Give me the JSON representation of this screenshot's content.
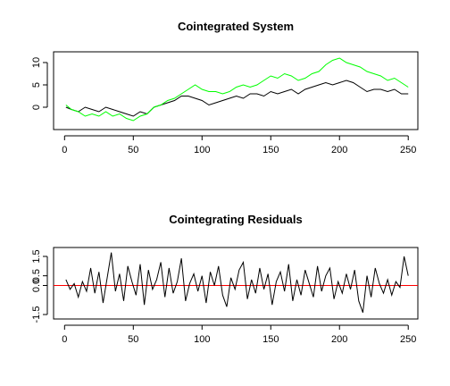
{
  "chart_data": [
    {
      "type": "line",
      "title": "Cointegrated System",
      "x": [
        1,
        5,
        10,
        15,
        20,
        25,
        30,
        35,
        40,
        45,
        50,
        55,
        60,
        65,
        70,
        75,
        80,
        85,
        90,
        95,
        100,
        105,
        110,
        115,
        120,
        125,
        130,
        135,
        140,
        145,
        150,
        155,
        160,
        165,
        170,
        175,
        180,
        185,
        190,
        195,
        200,
        205,
        210,
        215,
        220,
        225,
        230,
        235,
        240,
        245,
        250
      ],
      "series": [
        {
          "color": "#000000",
          "values": [
            0,
            -0.5,
            -1,
            0,
            -0.5,
            -1,
            0,
            -0.5,
            -1,
            -1.5,
            -2,
            -1,
            -1.5,
            0,
            0.5,
            1,
            1.5,
            2.5,
            2.5,
            2,
            1.5,
            0.5,
            1,
            1.5,
            2,
            2.5,
            2,
            3,
            3,
            2.5,
            3.5,
            3,
            3.5,
            4,
            3,
            4,
            4.5,
            5,
            5.5,
            5,
            5.5,
            6,
            5.5,
            4.5,
            3.5,
            4,
            4,
            3.5,
            4,
            3,
            3
          ]
        },
        {
          "color": "#00ff00",
          "values": [
            0.5,
            -0.5,
            -1,
            -2,
            -1.5,
            -2,
            -1,
            -2,
            -1.5,
            -2.5,
            -3,
            -2,
            -1.5,
            0,
            0.5,
            1.5,
            2,
            3,
            4,
            5,
            4,
            3.5,
            3.5,
            3,
            3.5,
            4.5,
            5,
            4.5,
            5,
            6,
            7,
            6.5,
            7.5,
            7,
            6,
            6.5,
            7.5,
            8,
            9.5,
            10.5,
            11,
            10,
            9.5,
            9,
            8,
            7.5,
            7,
            6,
            6.5,
            5.5,
            4.5
          ]
        }
      ],
      "xlim": [
        -8,
        257
      ],
      "ylim": [
        -5,
        12.4
      ],
      "xticks": [
        0,
        50,
        100,
        150,
        200,
        250
      ],
      "yticks": [
        0,
        5,
        10
      ]
    },
    {
      "type": "line",
      "title": "Cointegrating Residuals",
      "x": [
        1,
        4,
        7,
        10,
        13,
        16,
        19,
        22,
        25,
        28,
        31,
        34,
        37,
        40,
        43,
        46,
        49,
        52,
        55,
        58,
        61,
        64,
        67,
        70,
        73,
        76,
        79,
        82,
        85,
        88,
        91,
        94,
        97,
        100,
        103,
        106,
        109,
        112,
        115,
        118,
        121,
        124,
        127,
        130,
        133,
        136,
        139,
        142,
        145,
        148,
        151,
        154,
        157,
        160,
        163,
        166,
        169,
        172,
        175,
        178,
        181,
        184,
        187,
        190,
        193,
        196,
        199,
        202,
        205,
        208,
        211,
        214,
        217,
        220,
        223,
        226,
        229,
        232,
        235,
        238,
        241,
        244,
        247,
        250
      ],
      "series": [
        {
          "color": "#000000",
          "values": [
            0.3,
            -0.2,
            0.1,
            -0.6,
            0.2,
            -0.3,
            0.9,
            -0.4,
            0.7,
            -0.9,
            0.4,
            1.7,
            -0.3,
            0.6,
            -0.8,
            1.0,
            0.2,
            -0.5,
            1.1,
            -1.0,
            0.8,
            -0.2,
            0.3,
            1.2,
            -0.6,
            0.9,
            -0.4,
            0.2,
            1.4,
            -0.8,
            0.1,
            0.6,
            -0.3,
            0.5,
            -0.9,
            0.7,
            0.0,
            1.0,
            -0.5,
            -1.1,
            0.4,
            -0.2,
            0.8,
            1.2,
            -0.7,
            0.3,
            -0.4,
            0.9,
            -0.2,
            0.6,
            -1.0,
            0.2,
            0.7,
            -0.3,
            1.1,
            -0.8,
            0.3,
            -0.5,
            0.8,
            0.1,
            -0.6,
            1.0,
            -0.3,
            0.5,
            0.9,
            -0.7,
            0.2,
            -0.4,
            0.6,
            -0.2,
            0.8,
            -0.8,
            -1.4,
            0.5,
            -0.6,
            0.9,
            0.1,
            -0.4,
            0.3,
            -0.5,
            0.2,
            -0.1,
            1.5,
            0.5
          ]
        }
      ],
      "hline": {
        "value": 0,
        "color": "#ff0000"
      },
      "xlim": [
        -8,
        257
      ],
      "ylim": [
        -1.73,
        1.96
      ],
      "xticks": [
        0,
        50,
        100,
        150,
        200,
        250
      ],
      "yticks": [
        -1.5,
        {
          "value": 0,
          "label": "0.0"
        },
        0.5,
        1.5
      ]
    }
  ]
}
